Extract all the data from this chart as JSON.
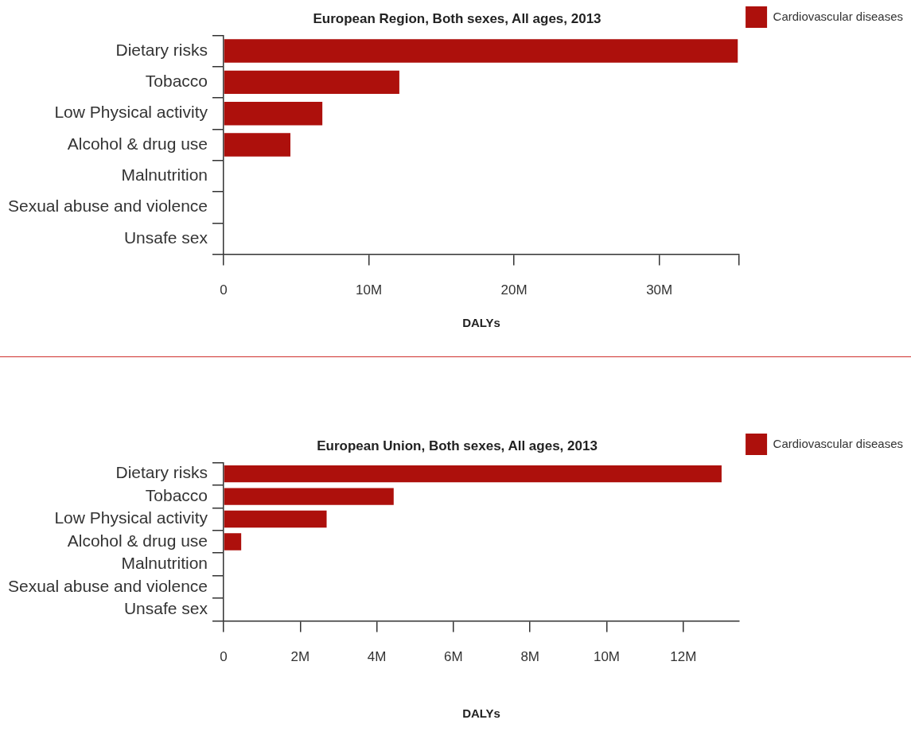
{
  "chart_data": [
    {
      "type": "bar",
      "orientation": "horizontal",
      "title": "European Region, Both sexes, All ages, 2013",
      "xlabel": "DALYs",
      "categories": [
        "Dietary risks",
        "Tobacco",
        "Low Physical activity",
        "Alcohol & drug use",
        "Malnutrition",
        "Sexual abuse and violence",
        "Unsafe sex"
      ],
      "series": [
        {
          "name": "Cardiovascular diseases",
          "color": "#ad100c",
          "values": [
            35400000,
            12100000,
            6800000,
            4600000,
            0,
            0,
            0
          ]
        }
      ],
      "xlim": [
        0,
        35500000
      ],
      "xticks": [
        {
          "value": 0,
          "label": "0"
        },
        {
          "value": 10000000,
          "label": "10M"
        },
        {
          "value": 20000000,
          "label": "20M"
        },
        {
          "value": 30000000,
          "label": "30M"
        },
        {
          "value": 35500000,
          "label": null
        }
      ],
      "grid": false,
      "legend": "top right"
    },
    {
      "type": "bar",
      "orientation": "horizontal",
      "title": "European Union, Both sexes, All ages, 2013",
      "xlabel": "DALYs",
      "categories": [
        "Dietary risks",
        "Tobacco",
        "Low Physical activity",
        "Alcohol & drug use",
        "Malnutrition",
        "Sexual abuse and violence",
        "Unsafe sex"
      ],
      "series": [
        {
          "name": "Cardiovascular diseases",
          "color": "#ad100c",
          "values": [
            13000000,
            4440000,
            2690000,
            460000,
            0,
            0,
            0
          ]
        }
      ],
      "xlim": [
        0,
        13460000
      ],
      "xticks": [
        {
          "value": 0,
          "label": "0"
        },
        {
          "value": 2000000,
          "label": "2M"
        },
        {
          "value": 4000000,
          "label": "4M"
        },
        {
          "value": 6000000,
          "label": "6M"
        },
        {
          "value": 8000000,
          "label": "8M"
        },
        {
          "value": 10000000,
          "label": "10M"
        },
        {
          "value": 12000000,
          "label": "12M"
        }
      ],
      "grid": false,
      "legend": "top right"
    }
  ]
}
